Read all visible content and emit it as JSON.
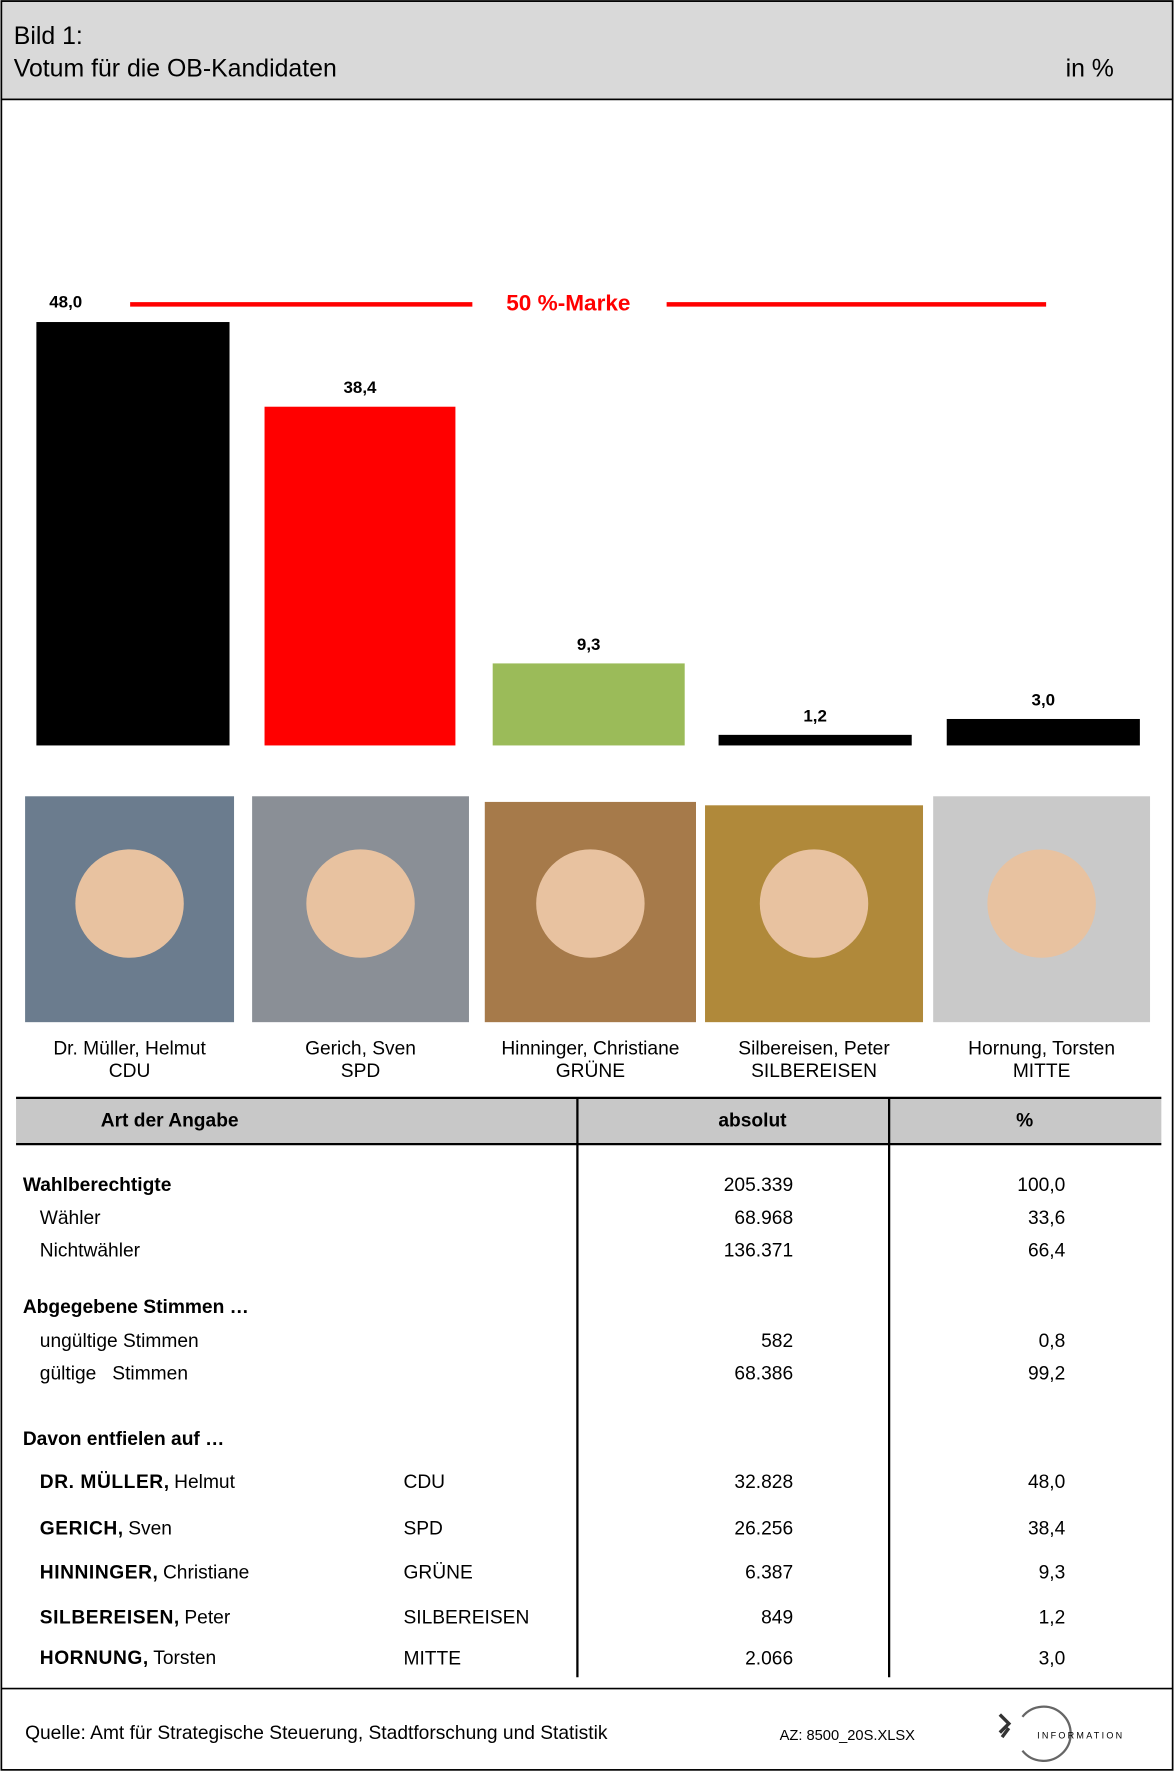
{
  "header": {
    "label": "Bild 1:",
    "title": "Votum für die OB-Kandidaten",
    "unit": "in %"
  },
  "chart_data": {
    "type": "bar",
    "categories": [
      "Dr. Müller, Helmut",
      "Gerich, Sven",
      "Hinninger, Christiane",
      "Silbereisen, Peter",
      "Hornung, Torsten"
    ],
    "values": [
      48.0,
      38.4,
      9.3,
      1.2,
      3.0
    ],
    "value_labels": [
      "48,0",
      "38,4",
      "9,3",
      "1,2",
      "3,0"
    ],
    "colors": [
      "#000000",
      "#ff0000",
      "#9bbb59",
      "#000000",
      "#000000"
    ],
    "mark_value": 50,
    "mark_label": "50 %-Marke",
    "mark_color": "#ff0000"
  },
  "candidates": [
    {
      "name": "Dr. Müller, Helmut",
      "party": "CDU"
    },
    {
      "name": "Gerich, Sven",
      "party": "SPD"
    },
    {
      "name": "Hinninger, Christiane",
      "party": "GRÜNE"
    },
    {
      "name": "Silbereisen, Peter",
      "party": "SILBEREISEN"
    },
    {
      "name": "Hornung, Torsten",
      "party": "MITTE"
    }
  ],
  "table": {
    "headers": [
      "Art der Angabe",
      "absolut",
      "%"
    ],
    "sections": [
      {
        "title": "Wahlberechtigte",
        "absolut": "205.339",
        "percent": "100,0",
        "rows": [
          {
            "label": "Wähler",
            "absolut": "68.968",
            "percent": "33,6"
          },
          {
            "label": "Nichtwähler",
            "absolut": "136.371",
            "percent": "66,4"
          }
        ]
      },
      {
        "title": "Abgegebene Stimmen …",
        "rows": [
          {
            "label": "ungültige Stimmen",
            "absolut": "582",
            "percent": "0,8"
          },
          {
            "label": "gültige   Stimmen",
            "absolut": "68.386",
            "percent": "99,2"
          }
        ]
      },
      {
        "title": "Davon entfielen auf …",
        "rows": [
          {
            "surname": "DR. MÜLLER,",
            "firstname": "Helmut",
            "party": "CDU",
            "absolut": "32.828",
            "percent": "48,0"
          },
          {
            "surname": "GERICH,",
            "firstname": "Sven",
            "party": "SPD",
            "absolut": "26.256",
            "percent": "38,4"
          },
          {
            "surname": "HINNINGER,",
            "firstname": "Christiane",
            "party": "GRÜNE",
            "absolut": "6.387",
            "percent": "9,3"
          },
          {
            "surname": "SILBEREISEN,",
            "firstname": "Peter",
            "party": "SILBEREISEN",
            "absolut": "849",
            "percent": "1,2"
          },
          {
            "surname": "HORNUNG,",
            "firstname": "Torsten",
            "party": "MITTE",
            "absolut": "2.066",
            "percent": "3,0"
          }
        ]
      }
    ]
  },
  "footer": {
    "source": "Quelle: Amt für Strategische Steuerung, Stadtforschung und Statistik",
    "file": "AZ: 8500_20S.XLSX",
    "logo": "INFORMATION"
  }
}
